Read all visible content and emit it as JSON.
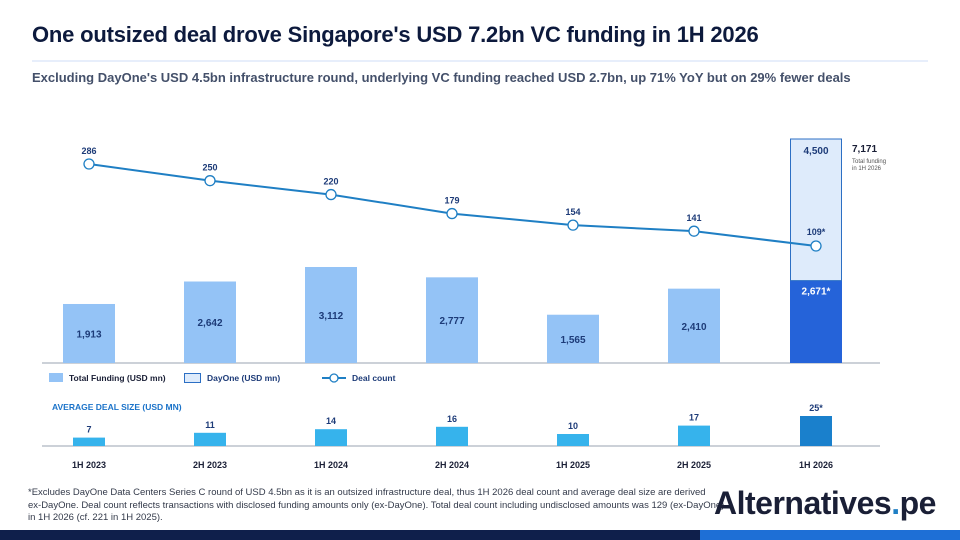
{
  "title": "One outsized deal drove Singapore's USD 7.2bn VC funding in 1H 2026",
  "subtitle": "Excluding DayOne's USD 4.5bn infrastructure round, underlying VC funding reached USD 2.7bn, up 71% YoY but on 29% fewer deals",
  "footnote": {
    "line1": "*Excludes DayOne Data Centers Series C round of USD 4.5bn as it is an outsized infrastructure deal, thus 1H 2026 deal count and average deal size are derived",
    "line2": "ex-DayOne. Deal count reflects transactions with disclosed funding amounts only (ex-DayOne). Total deal count including undisclosed amounts was 129 (ex-DayOne)",
    "line3": " in 1H 2026 (cf. 221 in 1H 2025)."
  },
  "brand": {
    "text": "Alternatives",
    "dot": ".",
    "suffix": "pe"
  },
  "colors": {
    "funding": "#94c3f6",
    "funding_highlight": "#2563d9",
    "dayone_fill": "#deebfb",
    "dayone_border": "#2c6fc4",
    "line": "#1f7fc4",
    "avg_bar": "#36b3ec",
    "avg_bar_highlight": "#1a80cc",
    "section_title": "#1b73c9"
  },
  "chart_data": [
    {
      "type": "bar",
      "categories": [
        "1H 2023",
        "2H 2023",
        "1H 2024",
        "2H 2024",
        "1H 2025",
        "2H 2025",
        "1H 2026"
      ],
      "series": [
        {
          "name": "Total Funding (USD mn)",
          "kind": "bar",
          "values": [
            1913,
            2642,
            3112,
            2777,
            1565,
            2410,
            2671
          ],
          "labels": [
            "1,913",
            "2,642",
            "3,112",
            "2,777",
            "1,565",
            "2,410",
            "2,671*"
          ]
        },
        {
          "name": "DayOne (USD mn)",
          "kind": "stacked-bar",
          "values": [
            0,
            0,
            0,
            0,
            0,
            0,
            4500
          ],
          "labels": [
            "",
            "",
            "",
            "",
            "",
            "",
            "4,500"
          ]
        },
        {
          "name": "Deal count",
          "kind": "line",
          "values": [
            286,
            250,
            220,
            179,
            154,
            141,
            109
          ],
          "labels": [
            "286",
            "250",
            "220",
            "179",
            "154",
            "141",
            "109*"
          ]
        }
      ],
      "total_annotation": {
        "value": "7,171",
        "note_line1": "Total funding",
        "note_line2": "in 1H 2026"
      }
    },
    {
      "type": "bar",
      "title": "AVERAGE DEAL SIZE (USD MN)",
      "categories": [
        "1H 2023",
        "2H 2023",
        "1H 2024",
        "2H 2024",
        "1H 2025",
        "2H 2025",
        "1H 2026"
      ],
      "values": [
        7,
        11,
        14,
        16,
        10,
        17,
        25
      ],
      "labels": [
        "7",
        "11",
        "14",
        "16",
        "10",
        "17",
        "25*"
      ]
    }
  ]
}
